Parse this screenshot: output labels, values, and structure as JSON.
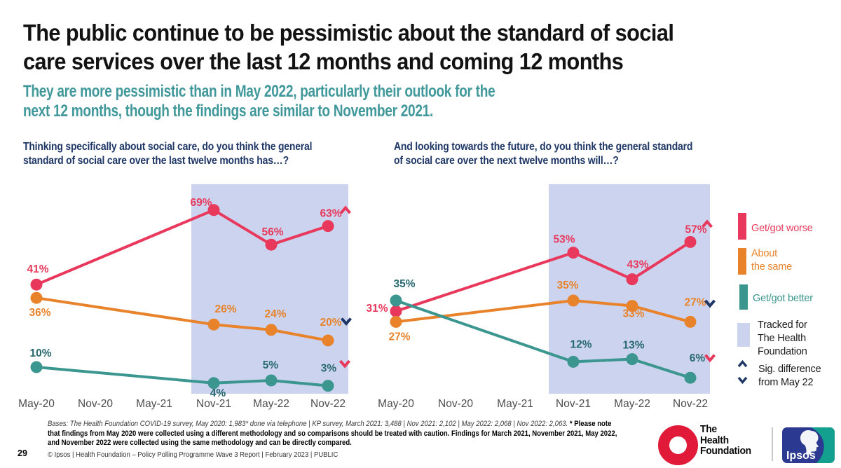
{
  "page": {
    "title_lines": [
      "The public continue to be pessimistic about the standard of social",
      "care services over the last 12 months and coming 12 months"
    ],
    "subtitle_lines": [
      "They are more pessimistic than in May 2022, particularly their outlook for the",
      "next 12 months, though the findings are similar to November 2021."
    ],
    "page_number": "29",
    "copyright": "© Ipsos | Health Foundation – Policy Polling Programme Wave 3 Report | February 2023 | PUBLIC",
    "footnote": {
      "bases": "Bases: The Health Foundation COVID-19 survey, May 2020: 1,983* done via telephone | KP survey, March 2021: 3,488 | Nov 2021: 2,102 | May 2022: 2,068 | Nov 2022: 2,063.",
      "note_lines": [
        "* Please note",
        "that findings from May 2020 were collected using a different methodology and so comparisons should be treated with caution. Findings for March 2021, November 2021, May 2022,",
        "and November 2022 were collected using the same methodology and can be directly compared."
      ]
    }
  },
  "colors": {
    "red": "#e8395c",
    "orange": "#e8832b",
    "teal": "#3a968e",
    "teal_label": "#26686e",
    "navy": "#1e3766",
    "lavender": "#ccd3ee",
    "axis": "#4d4d4d",
    "subtitle": "#41989b",
    "title": "#121212",
    "hf_red": "#e11a3a",
    "ipsos_blue": "#2b3990",
    "ipsos_teal": "#13a08f",
    "divider": "#c9c9c9",
    "footnote": "#1a1a1a"
  },
  "legend": {
    "items": [
      {
        "key": "red",
        "label_lines": [
          "Get/got worse"
        ]
      },
      {
        "key": "orange",
        "label_lines": [
          "About",
          "the same"
        ]
      },
      {
        "key": "teal",
        "label_lines": [
          "Get/got better"
        ]
      },
      {
        "key": "lavender",
        "label_lines": [
          "Tracked for",
          "The Health",
          "Foundation"
        ]
      },
      {
        "key": "sig",
        "label_lines": [
          "Sig. difference",
          "from May 22"
        ]
      }
    ]
  },
  "logos": {
    "health_foundation_lines": [
      "The",
      "Health",
      "Foundation"
    ],
    "ipsos_label": "Ipsos"
  },
  "chart_data": [
    {
      "type": "line",
      "question_lines": [
        "Thinking specifically about social care, do you think the general",
        "standard of social care over the last twelve months has…?"
      ],
      "x_ticks": [
        "May-20",
        "Nov-20",
        "May-21",
        "Nov-21",
        "May-22",
        "Nov-22"
      ],
      "data_x": [
        "May-20",
        "Nov-21",
        "May-22",
        "Nov-22"
      ],
      "ylim": [
        0,
        80
      ],
      "grid": false,
      "highlight_region": {
        "from": "Nov-21",
        "to": "Nov-22",
        "label": "Tracked for The Health Foundation"
      },
      "series": [
        {
          "name": "Get/got worse",
          "color": "red",
          "values": [
            41,
            69,
            56,
            63
          ],
          "sig_vs_may22": {
            "symbol": "^",
            "color": "red"
          }
        },
        {
          "name": "About the same",
          "color": "orange",
          "values": [
            36,
            26,
            24,
            20
          ],
          "sig_vs_may22": {
            "symbol": "v",
            "color": "navy"
          }
        },
        {
          "name": "Get/got better",
          "color": "teal",
          "values": [
            10,
            4,
            5,
            3
          ],
          "sig_vs_may22": {
            "symbol": "v",
            "color": "red"
          }
        }
      ]
    },
    {
      "type": "line",
      "question_lines": [
        "And looking towards the future, do you think the general standard",
        "of social care over the next twelve months will…?"
      ],
      "x_ticks": [
        "May-20",
        "Nov-20",
        "May-21",
        "Nov-21",
        "May-22",
        "Nov-22"
      ],
      "data_x": [
        "May-20",
        "Nov-21",
        "May-22",
        "Nov-22"
      ],
      "ylim": [
        0,
        80
      ],
      "grid": false,
      "highlight_region": {
        "from": "Nov-21",
        "to": "Nov-22",
        "label": "Tracked for The Health Foundation"
      },
      "series": [
        {
          "name": "Get/got worse",
          "color": "red",
          "values": [
            31,
            53,
            43,
            57
          ],
          "sig_vs_may22": {
            "symbol": "^",
            "color": "red"
          }
        },
        {
          "name": "About the same",
          "color": "orange",
          "values": [
            27,
            35,
            33,
            27
          ],
          "sig_vs_may22": {
            "symbol": "v",
            "color": "navy"
          }
        },
        {
          "name": "Get/got better",
          "color": "teal",
          "values": [
            35,
            12,
            13,
            6
          ],
          "sig_vs_may22": {
            "symbol": "v",
            "color": "red"
          }
        }
      ]
    }
  ]
}
